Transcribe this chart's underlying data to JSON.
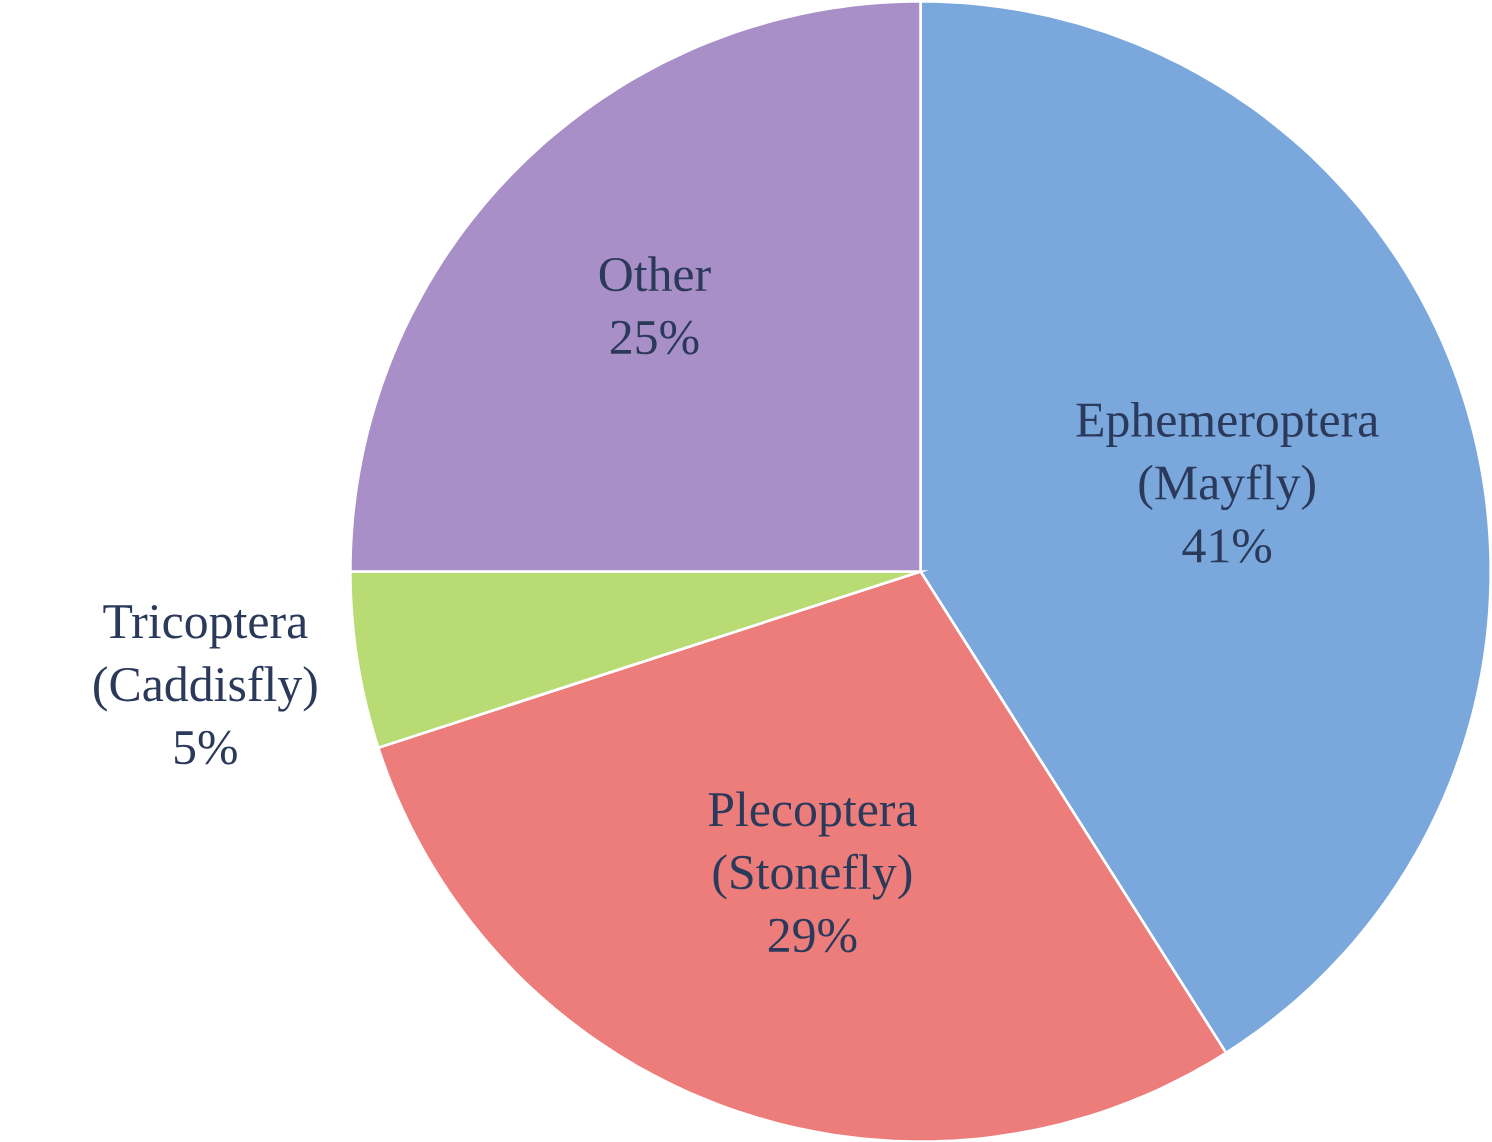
{
  "chart_data": {
    "type": "pie",
    "categories": [
      "Ephemeroptera (Mayfly)",
      "Plecoptera (Stonefly)",
      "Tricoptera (Caddisfly)",
      "Other"
    ],
    "values": [
      41,
      29,
      5,
      25
    ],
    "value_labels": [
      "41%",
      "29%",
      "5%",
      "25%"
    ],
    "colors": [
      "#7aa7dc",
      "#ec7d7b",
      "#b9db74",
      "#a98fc8"
    ]
  }
}
